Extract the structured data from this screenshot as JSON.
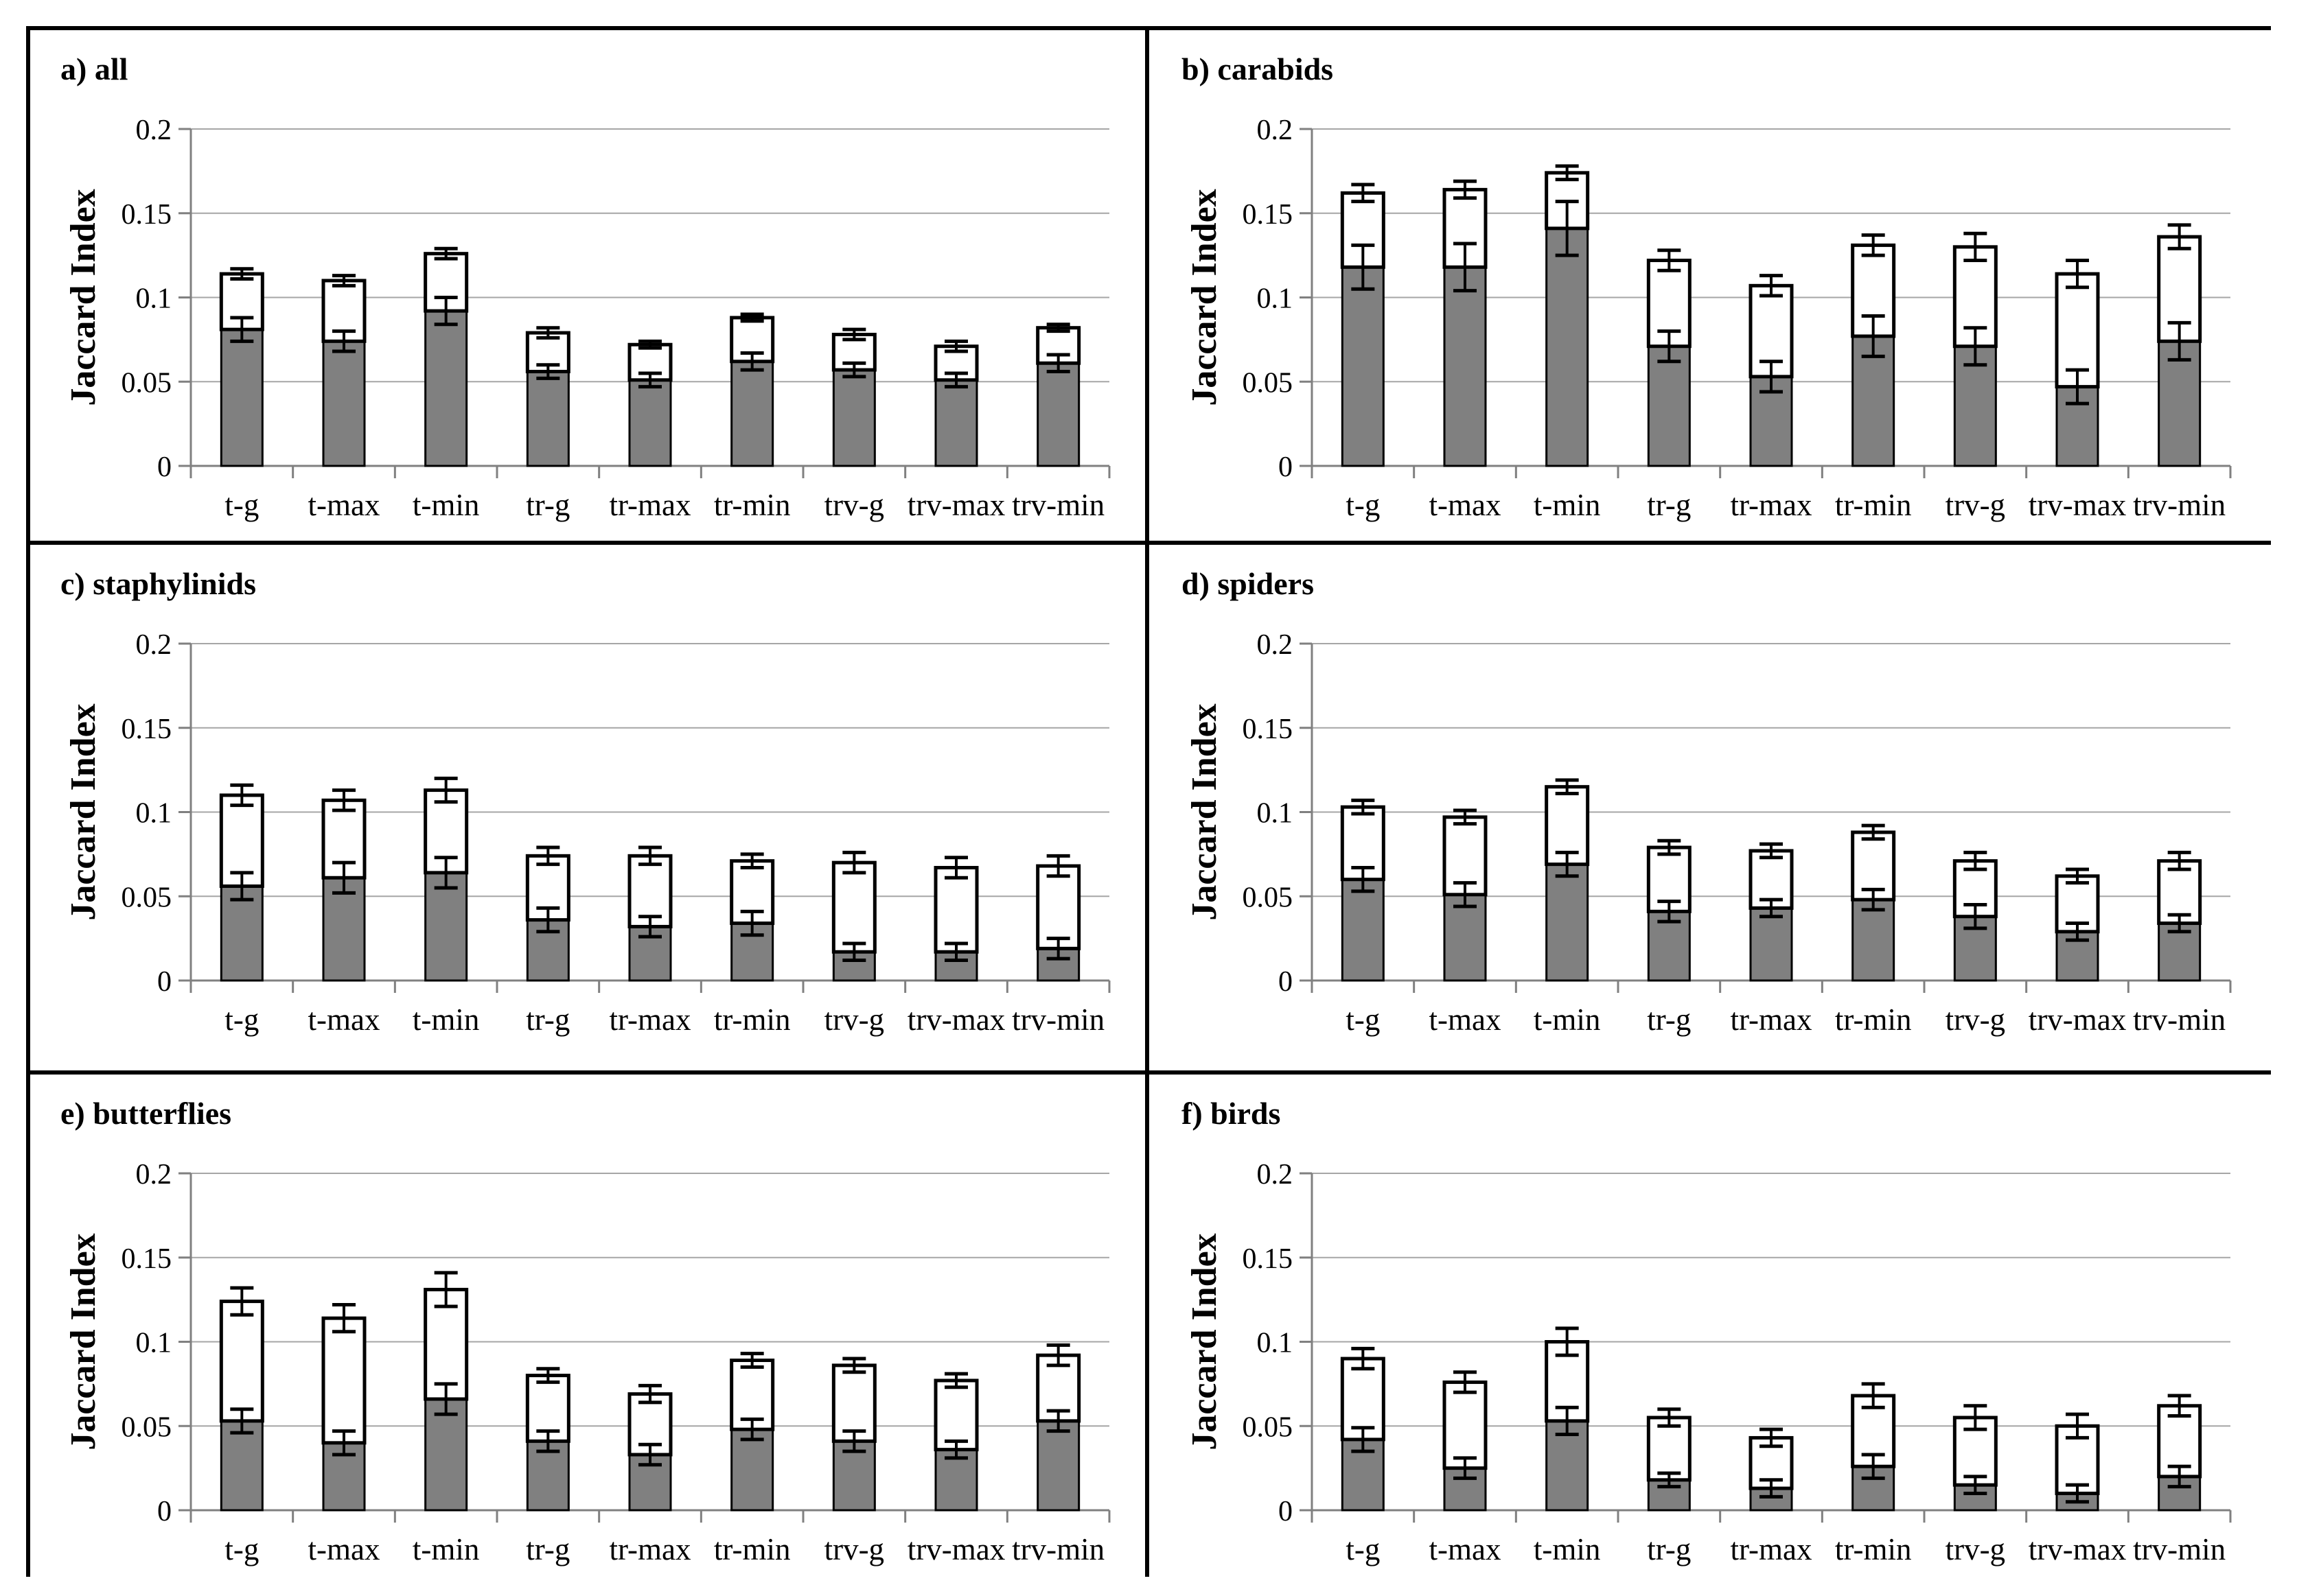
{
  "figure": {
    "kind": "six-panel stacked bar figure",
    "ylabel": "Jaccard Index",
    "ylim": [
      0,
      0.2
    ],
    "yticks": [
      0,
      0.05,
      0.1,
      0.15,
      0.2
    ],
    "categories": [
      "t-g",
      "t-max",
      "t-min",
      "tr-g",
      "tr-max",
      "tr-min",
      "trv-g",
      "trv-max",
      "trv-min"
    ],
    "colors": {
      "gray_bar_fill": "#808080",
      "white_bar_fill": "#ffffff",
      "bar_outline": "#000000",
      "error_bar": "#000000",
      "gridline": "#a6a6a6",
      "axis": "#808080",
      "panel_border": "#000000",
      "text": "#000000",
      "background": "#ffffff"
    }
  },
  "chart_data": [
    {
      "type": "bar",
      "panel": "a",
      "title": "a) all",
      "ylabel": "Jaccard Index",
      "ylim": [
        0,
        0.2
      ],
      "yticks": [
        0,
        0.05,
        0.1,
        0.15,
        0.2
      ],
      "grid": true,
      "legend": false,
      "stacked": true,
      "categories": [
        "t-g",
        "t-max",
        "t-min",
        "tr-g",
        "tr-max",
        "tr-min",
        "trv-g",
        "trv-max",
        "trv-min"
      ],
      "series": [
        {
          "name": "gray-segment-top",
          "fill": "#808080",
          "values": [
            0.081,
            0.074,
            0.092,
            0.056,
            0.051,
            0.062,
            0.057,
            0.051,
            0.061
          ],
          "errors": [
            0.007,
            0.006,
            0.008,
            0.004,
            0.004,
            0.005,
            0.004,
            0.004,
            0.005
          ]
        },
        {
          "name": "bar-total-top",
          "fill": "#ffffff",
          "values": [
            0.114,
            0.11,
            0.126,
            0.079,
            0.072,
            0.088,
            0.078,
            0.071,
            0.082
          ],
          "errors": [
            0.003,
            0.003,
            0.003,
            0.003,
            0.002,
            0.002,
            0.003,
            0.003,
            0.002
          ]
        }
      ]
    },
    {
      "type": "bar",
      "panel": "b",
      "title": "b) carabids",
      "ylabel": "Jaccard Index",
      "ylim": [
        0,
        0.2
      ],
      "yticks": [
        0,
        0.05,
        0.1,
        0.15,
        0.2
      ],
      "grid": true,
      "legend": false,
      "stacked": true,
      "categories": [
        "t-g",
        "t-max",
        "t-min",
        "tr-g",
        "tr-max",
        "tr-min",
        "trv-g",
        "trv-max",
        "trv-min"
      ],
      "series": [
        {
          "name": "gray-segment-top",
          "fill": "#808080",
          "values": [
            0.118,
            0.118,
            0.141,
            0.071,
            0.053,
            0.077,
            0.071,
            0.047,
            0.074
          ],
          "errors": [
            0.013,
            0.014,
            0.016,
            0.009,
            0.009,
            0.012,
            0.011,
            0.01,
            0.011
          ]
        },
        {
          "name": "bar-total-top",
          "fill": "#ffffff",
          "values": [
            0.162,
            0.164,
            0.174,
            0.122,
            0.107,
            0.131,
            0.13,
            0.114,
            0.136
          ],
          "errors": [
            0.005,
            0.005,
            0.004,
            0.006,
            0.006,
            0.006,
            0.008,
            0.008,
            0.007
          ]
        }
      ]
    },
    {
      "type": "bar",
      "panel": "c",
      "title": "c) staphylinids",
      "ylabel": "Jaccard Index",
      "ylim": [
        0,
        0.2
      ],
      "yticks": [
        0,
        0.05,
        0.1,
        0.15,
        0.2
      ],
      "grid": true,
      "legend": false,
      "stacked": true,
      "categories": [
        "t-g",
        "t-max",
        "t-min",
        "tr-g",
        "tr-max",
        "tr-min",
        "trv-g",
        "trv-max",
        "trv-min"
      ],
      "series": [
        {
          "name": "gray-segment-top",
          "fill": "#808080",
          "values": [
            0.056,
            0.061,
            0.064,
            0.036,
            0.032,
            0.034,
            0.017,
            0.017,
            0.019
          ],
          "errors": [
            0.008,
            0.009,
            0.009,
            0.007,
            0.006,
            0.007,
            0.005,
            0.005,
            0.006
          ]
        },
        {
          "name": "bar-total-top",
          "fill": "#ffffff",
          "values": [
            0.11,
            0.107,
            0.113,
            0.074,
            0.074,
            0.071,
            0.07,
            0.067,
            0.068
          ],
          "errors": [
            0.006,
            0.006,
            0.007,
            0.005,
            0.005,
            0.004,
            0.006,
            0.006,
            0.006
          ]
        }
      ]
    },
    {
      "type": "bar",
      "panel": "d",
      "title": "d) spiders",
      "ylabel": "Jaccard Index",
      "ylim": [
        0,
        0.2
      ],
      "yticks": [
        0,
        0.05,
        0.1,
        0.15,
        0.2
      ],
      "grid": true,
      "legend": false,
      "stacked": true,
      "categories": [
        "t-g",
        "t-max",
        "t-min",
        "tr-g",
        "tr-max",
        "tr-min",
        "trv-g",
        "trv-max",
        "trv-min"
      ],
      "series": [
        {
          "name": "gray-segment-top",
          "fill": "#808080",
          "values": [
            0.06,
            0.051,
            0.069,
            0.041,
            0.043,
            0.048,
            0.038,
            0.029,
            0.034
          ],
          "errors": [
            0.007,
            0.007,
            0.007,
            0.006,
            0.005,
            0.006,
            0.007,
            0.005,
            0.005
          ]
        },
        {
          "name": "bar-total-top",
          "fill": "#ffffff",
          "values": [
            0.103,
            0.097,
            0.115,
            0.079,
            0.077,
            0.088,
            0.071,
            0.062,
            0.071
          ],
          "errors": [
            0.004,
            0.004,
            0.004,
            0.004,
            0.004,
            0.004,
            0.005,
            0.004,
            0.005
          ]
        }
      ]
    },
    {
      "type": "bar",
      "panel": "e",
      "title": "e) butterflies",
      "ylabel": "Jaccard Index",
      "ylim": [
        0,
        0.2
      ],
      "yticks": [
        0,
        0.05,
        0.1,
        0.15,
        0.2
      ],
      "grid": true,
      "legend": false,
      "stacked": true,
      "categories": [
        "t-g",
        "t-max",
        "t-min",
        "tr-g",
        "tr-max",
        "tr-min",
        "trv-g",
        "trv-max",
        "trv-min"
      ],
      "series": [
        {
          "name": "gray-segment-top",
          "fill": "#808080",
          "values": [
            0.053,
            0.04,
            0.066,
            0.041,
            0.033,
            0.048,
            0.041,
            0.036,
            0.053
          ],
          "errors": [
            0.007,
            0.007,
            0.009,
            0.006,
            0.006,
            0.006,
            0.006,
            0.005,
            0.006
          ]
        },
        {
          "name": "bar-total-top",
          "fill": "#ffffff",
          "values": [
            0.124,
            0.114,
            0.131,
            0.08,
            0.069,
            0.089,
            0.086,
            0.077,
            0.092
          ],
          "errors": [
            0.008,
            0.008,
            0.01,
            0.004,
            0.005,
            0.004,
            0.004,
            0.004,
            0.006
          ]
        }
      ]
    },
    {
      "type": "bar",
      "panel": "f",
      "title": "f) birds",
      "ylabel": "Jaccard Index",
      "ylim": [
        0,
        0.2
      ],
      "yticks": [
        0,
        0.05,
        0.1,
        0.15,
        0.2
      ],
      "grid": true,
      "legend": false,
      "stacked": true,
      "categories": [
        "t-g",
        "t-max",
        "t-min",
        "tr-g",
        "tr-max",
        "tr-min",
        "trv-g",
        "trv-max",
        "trv-min"
      ],
      "series": [
        {
          "name": "gray-segment-top",
          "fill": "#808080",
          "values": [
            0.042,
            0.025,
            0.053,
            0.018,
            0.013,
            0.026,
            0.015,
            0.01,
            0.02
          ],
          "errors": [
            0.007,
            0.006,
            0.008,
            0.004,
            0.005,
            0.007,
            0.005,
            0.005,
            0.006
          ]
        },
        {
          "name": "bar-total-top",
          "fill": "#ffffff",
          "values": [
            0.09,
            0.076,
            0.1,
            0.055,
            0.043,
            0.068,
            0.055,
            0.05,
            0.062
          ],
          "errors": [
            0.006,
            0.006,
            0.008,
            0.005,
            0.005,
            0.007,
            0.007,
            0.007,
            0.006
          ]
        }
      ]
    }
  ]
}
